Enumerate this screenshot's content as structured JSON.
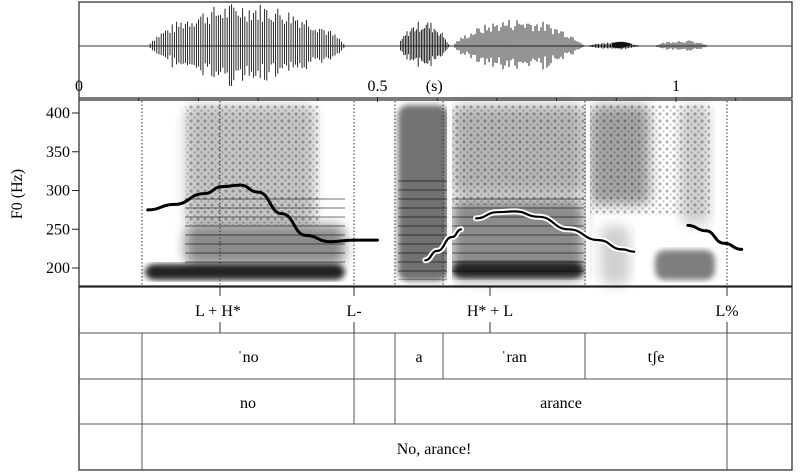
{
  "waveform": {
    "time_ticks": [
      {
        "value": 0,
        "label": "0"
      },
      {
        "value": 0.5,
        "label": "0.5"
      },
      {
        "value": 1,
        "label": "1"
      }
    ],
    "annotation": "(s)",
    "annotation_time": 0.595
  },
  "spectrogram": {
    "ylabel": "F0 (Hz)",
    "ylim": [
      175,
      415
    ],
    "yticks": [
      "400",
      "350",
      "300",
      "250",
      "200"
    ]
  },
  "chart_data": {
    "type": "line",
    "title": "",
    "xlabel": "",
    "ylabel": "F0 (Hz)",
    "xlim": [
      0,
      1.22
    ],
    "ylim": [
      175,
      415
    ],
    "series": [
      {
        "values": [
          [
            0.115,
            275
          ],
          [
            0.16,
            282
          ],
          [
            0.21,
            296
          ],
          [
            0.24,
            305
          ],
          [
            0.27,
            307
          ],
          [
            0.3,
            298
          ],
          [
            0.34,
            270
          ],
          [
            0.38,
            242
          ],
          [
            0.42,
            234
          ],
          [
            0.46,
            236
          ],
          [
            0.5,
            236
          ]
        ]
      },
      {
        "values": [
          [
            0.58,
            210
          ],
          [
            0.6,
            222
          ],
          [
            0.625,
            240
          ],
          [
            0.64,
            250
          ]
        ]
      },
      {
        "values": [
          [
            0.665,
            264
          ],
          [
            0.7,
            272
          ],
          [
            0.73,
            273
          ],
          [
            0.77,
            266
          ],
          [
            0.82,
            250
          ],
          [
            0.87,
            236
          ],
          [
            0.91,
            224
          ],
          [
            0.93,
            221
          ]
        ]
      },
      {
        "values": [
          [
            1.02,
            255
          ],
          [
            1.05,
            248
          ],
          [
            1.08,
            232
          ],
          [
            1.11,
            224
          ]
        ]
      }
    ]
  },
  "tiers": {
    "tones": [
      {
        "label": "L + H*",
        "time": 0.235
      },
      {
        "label": "L-",
        "time": 0.48
      },
      {
        "label": "H* + L",
        "time": 0.72
      },
      {
        "label": "L%",
        "time": 1.155
      }
    ],
    "syllables": [
      "ˈno",
      "a",
      "ˈran",
      "tʃe"
    ],
    "words": [
      "no",
      "arance"
    ],
    "phrase": "No, arance!"
  }
}
